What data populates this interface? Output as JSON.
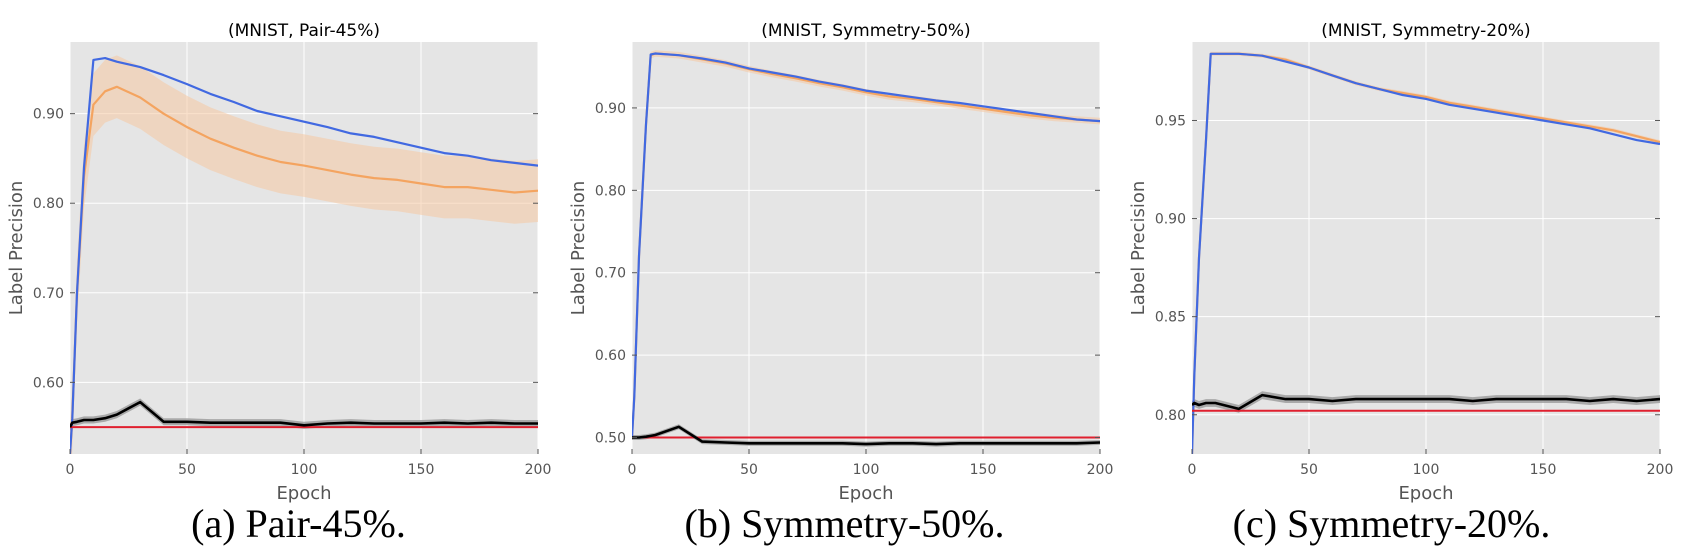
{
  "captions": [
    "(a) Pair-45%.",
    "(b) Symmetry-50%.",
    "(c) Symmetry-20%."
  ],
  "colors": {
    "plot_bg": "#e5e5e5",
    "grid": "#ffffff",
    "blue_series": "#4169e1",
    "orange_series": "#f4a460",
    "orange_band": "#f5c9a3",
    "black_series": "#000000",
    "black_band": "#9a9a9a",
    "red_line": "#e0202f",
    "tick_text": "#555555",
    "axis_text": "#555555"
  },
  "chart_data": [
    {
      "type": "line",
      "title": "(MNIST, Pair-45%)",
      "xlabel": "Epoch",
      "ylabel": "Label Precision",
      "xlim": [
        0,
        200
      ],
      "ylim": [
        0.52,
        0.98
      ],
      "xticks": [
        0,
        50,
        100,
        150,
        200
      ],
      "yticks": [
        0.6,
        0.7,
        0.8,
        0.9
      ],
      "ytick_labels": [
        "0.60",
        "0.70",
        "0.80",
        "0.90"
      ],
      "grid": true,
      "x": [
        0,
        1,
        3,
        6,
        10,
        15,
        20,
        30,
        40,
        50,
        60,
        70,
        80,
        90,
        100,
        110,
        120,
        130,
        140,
        150,
        160,
        170,
        180,
        190,
        200
      ],
      "series": [
        {
          "key": "blue",
          "values": [
            0.52,
            0.56,
            0.7,
            0.84,
            0.96,
            0.962,
            0.958,
            0.952,
            0.943,
            0.933,
            0.922,
            0.913,
            0.903,
            0.897,
            0.891,
            0.885,
            0.878,
            0.874,
            0.868,
            0.862,
            0.856,
            0.853,
            0.848,
            0.845,
            0.842
          ]
        },
        {
          "key": "orange",
          "values": [
            0.52,
            0.56,
            0.7,
            0.83,
            0.91,
            0.925,
            0.93,
            0.918,
            0.9,
            0.885,
            0.872,
            0.862,
            0.853,
            0.846,
            0.842,
            0.837,
            0.832,
            0.828,
            0.826,
            0.822,
            0.818,
            0.818,
            0.815,
            0.812,
            0.814
          ],
          "band": 0.035
        },
        {
          "key": "black",
          "values": [
            0.55,
            0.555,
            0.556,
            0.558,
            0.558,
            0.56,
            0.564,
            0.578,
            0.556,
            0.556,
            0.555,
            0.555,
            0.555,
            0.555,
            0.552,
            0.554,
            0.555,
            0.554,
            0.554,
            0.554,
            0.555,
            0.554,
            0.555,
            0.554,
            0.554
          ],
          "band": 0.004
        },
        {
          "key": "red",
          "values": [
            0.55,
            0.55,
            0.55,
            0.55,
            0.55,
            0.55,
            0.55,
            0.55,
            0.55,
            0.55,
            0.55,
            0.55,
            0.55,
            0.55,
            0.55,
            0.55,
            0.55,
            0.55,
            0.55,
            0.55,
            0.55,
            0.55,
            0.55,
            0.55,
            0.55
          ]
        }
      ]
    },
    {
      "type": "line",
      "title": "(MNIST, Symmetry-50%)",
      "xlabel": "Epoch",
      "ylabel": "Label Precision",
      "xlim": [
        0,
        200
      ],
      "ylim": [
        0.48,
        0.98
      ],
      "xticks": [
        0,
        50,
        100,
        150,
        200
      ],
      "yticks": [
        0.5,
        0.6,
        0.7,
        0.8,
        0.9
      ],
      "ytick_labels": [
        "0.50",
        "0.60",
        "0.70",
        "0.80",
        "0.90"
      ],
      "grid": true,
      "x": [
        0,
        1,
        3,
        6,
        8,
        10,
        20,
        30,
        40,
        50,
        60,
        70,
        80,
        90,
        100,
        110,
        120,
        130,
        140,
        150,
        160,
        170,
        180,
        190,
        200
      ],
      "series": [
        {
          "key": "blue",
          "values": [
            0.5,
            0.55,
            0.72,
            0.88,
            0.965,
            0.966,
            0.964,
            0.96,
            0.955,
            0.948,
            0.943,
            0.938,
            0.932,
            0.927,
            0.921,
            0.917,
            0.913,
            0.909,
            0.906,
            0.902,
            0.898,
            0.894,
            0.89,
            0.886,
            0.884
          ]
        },
        {
          "key": "orange",
          "values": [
            0.5,
            0.55,
            0.72,
            0.88,
            0.964,
            0.966,
            0.964,
            0.959,
            0.954,
            0.947,
            0.941,
            0.936,
            0.93,
            0.925,
            0.919,
            0.914,
            0.911,
            0.907,
            0.903,
            0.899,
            0.895,
            0.891,
            0.888,
            0.886,
            0.884
          ],
          "band": 0.004
        },
        {
          "key": "black",
          "values": [
            0.5,
            0.5,
            0.5,
            0.501,
            0.502,
            0.503,
            0.513,
            0.495,
            0.494,
            0.493,
            0.493,
            0.493,
            0.493,
            0.493,
            0.492,
            0.493,
            0.493,
            0.492,
            0.493,
            0.493,
            0.493,
            0.493,
            0.493,
            0.493,
            0.494
          ],
          "band": 0.003
        },
        {
          "key": "red",
          "values": [
            0.5,
            0.5,
            0.5,
            0.5,
            0.5,
            0.5,
            0.5,
            0.5,
            0.5,
            0.5,
            0.5,
            0.5,
            0.5,
            0.5,
            0.5,
            0.5,
            0.5,
            0.5,
            0.5,
            0.5,
            0.5,
            0.5,
            0.5,
            0.5,
            0.5
          ]
        }
      ]
    },
    {
      "type": "line",
      "title": "(MNIST, Symmetry-20%)",
      "xlabel": "Epoch",
      "ylabel": "Label Precision",
      "xlim": [
        0,
        200
      ],
      "ylim": [
        0.78,
        0.99
      ],
      "xticks": [
        0,
        50,
        100,
        150,
        200
      ],
      "yticks": [
        0.8,
        0.85,
        0.9,
        0.95
      ],
      "ytick_labels": [
        "0.80",
        "0.85",
        "0.90",
        "0.95"
      ],
      "grid": true,
      "x": [
        0,
        1,
        3,
        6,
        8,
        10,
        20,
        30,
        40,
        50,
        60,
        70,
        80,
        90,
        100,
        110,
        120,
        130,
        140,
        150,
        160,
        170,
        180,
        190,
        200
      ],
      "series": [
        {
          "key": "blue",
          "values": [
            0.78,
            0.82,
            0.88,
            0.94,
            0.984,
            0.984,
            0.984,
            0.983,
            0.98,
            0.977,
            0.973,
            0.969,
            0.966,
            0.963,
            0.961,
            0.958,
            0.956,
            0.954,
            0.952,
            0.95,
            0.948,
            0.946,
            0.943,
            0.94,
            0.938
          ]
        },
        {
          "key": "orange",
          "values": [
            0.78,
            0.82,
            0.88,
            0.94,
            0.984,
            0.984,
            0.984,
            0.983,
            0.981,
            0.977,
            0.973,
            0.969,
            0.966,
            0.964,
            0.962,
            0.959,
            0.957,
            0.955,
            0.953,
            0.951,
            0.949,
            0.947,
            0.945,
            0.942,
            0.939
          ],
          "band": 0.001
        },
        {
          "key": "black",
          "values": [
            0.805,
            0.806,
            0.805,
            0.806,
            0.806,
            0.806,
            0.803,
            0.81,
            0.808,
            0.808,
            0.807,
            0.808,
            0.808,
            0.808,
            0.808,
            0.808,
            0.807,
            0.808,
            0.808,
            0.808,
            0.808,
            0.807,
            0.808,
            0.807,
            0.808
          ],
          "band": 0.002
        },
        {
          "key": "red",
          "values": [
            0.802,
            0.802,
            0.802,
            0.802,
            0.802,
            0.802,
            0.802,
            0.802,
            0.802,
            0.802,
            0.802,
            0.802,
            0.802,
            0.802,
            0.802,
            0.802,
            0.802,
            0.802,
            0.802,
            0.802,
            0.802,
            0.802,
            0.802,
            0.802,
            0.802
          ]
        }
      ]
    }
  ]
}
